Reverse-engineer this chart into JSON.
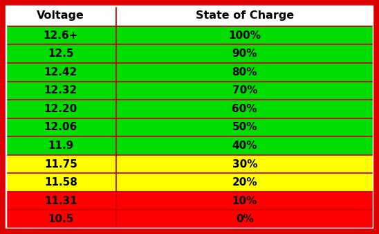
{
  "headers": [
    "Voltage",
    "State of Charge"
  ],
  "rows": [
    [
      "12.6+",
      "100%"
    ],
    [
      "12.5",
      "90%"
    ],
    [
      "12.42",
      "80%"
    ],
    [
      "12.32",
      "70%"
    ],
    [
      "12.20",
      "60%"
    ],
    [
      "12.06",
      "50%"
    ],
    [
      "11.9",
      "40%"
    ],
    [
      "11.75",
      "30%"
    ],
    [
      "11.58",
      "20%"
    ],
    [
      "11.31",
      "10%"
    ],
    [
      "10.5",
      "0%"
    ]
  ],
  "row_colors": [
    "#00dd00",
    "#00dd00",
    "#00dd00",
    "#00dd00",
    "#00dd00",
    "#00dd00",
    "#00dd00",
    "#ffff00",
    "#ffff00",
    "#ff0000",
    "#ff0000"
  ],
  "header_bg": "#ffffff",
  "header_text_color": "#000000",
  "cell_text_color": "#000000",
  "border_outer_color": "#dd0000",
  "border_inner_color": "#cc0000",
  "header_fontsize": 11.5,
  "cell_fontsize": 11,
  "figsize": [
    5.48,
    3.38
  ],
  "dpi": 100
}
